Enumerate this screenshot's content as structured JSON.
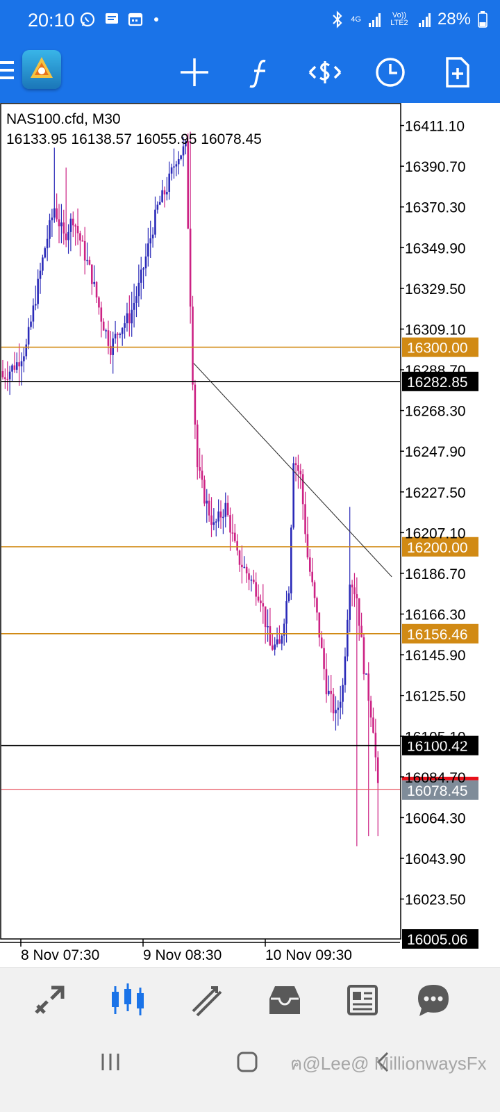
{
  "status_bar": {
    "time": "20:10",
    "network_4g": "4G",
    "network_volte": "Vo)) LTE2",
    "battery": "28%",
    "icons": [
      "whatsapp-icon",
      "message-icon",
      "calendar-icon",
      "dot-icon",
      "bluetooth-icon",
      "signal-icon",
      "signal-icon",
      "battery-icon"
    ]
  },
  "toolbar": {
    "icons": [
      "menu-icon",
      "metatrader-logo",
      "crosshair-icon",
      "indicator-icon",
      "trade-icon",
      "clock-icon",
      "new-document-icon"
    ]
  },
  "chart": {
    "symbol": "NAS100.cfd, M30",
    "ohlc": "16133.95 16138.57 16055.95 16078.45",
    "price_ticks": [
      "16411.10",
      "16390.70",
      "16370.30",
      "16349.90",
      "16329.50",
      "16309.10",
      "16288.70",
      "16268.30",
      "16247.90",
      "16227.50",
      "16207.10",
      "16186.70",
      "16166.30",
      "16145.90",
      "16125.50",
      "16105.10",
      "16084.70",
      "16064.30",
      "16043.90",
      "16023.50"
    ],
    "time_labels": [
      "8 Nov 07:30",
      "9 Nov 08:30",
      "10 Nov 09:30"
    ],
    "level_lines": [
      {
        "price": 16300.0,
        "label": "16300.00",
        "color": "#d18a14",
        "text_color": "#ffffff"
      },
      {
        "price": 16282.85,
        "label": "16282.85",
        "color": "#000000",
        "text_color": "#ffffff"
      },
      {
        "price": 16200.0,
        "label": "16200.00",
        "color": "#d18a14",
        "text_color": "#ffffff"
      },
      {
        "price": 16156.46,
        "label": "16156.46",
        "color": "#d18a14",
        "text_color": "#ffffff"
      },
      {
        "price": 16100.42,
        "label": "16100.42",
        "color": "#000000",
        "text_color": "#ffffff"
      }
    ],
    "bid_line": {
      "price": 16078.45,
      "label": "16078.45",
      "color": "#e8525f",
      "label_bg": "#7f8c99"
    },
    "ask_marker_color": "#e8101a",
    "bottom_price": {
      "price": 16005.06,
      "label": "16005.06"
    },
    "trendline": {
      "from": {
        "price": 16292,
        "bar": 82
      },
      "to": {
        "price": 16185,
        "bar": 165
      }
    },
    "bull_color": "#2a2ab8",
    "bear_color": "#cc2284",
    "visible_low": 16003.5,
    "visible_high": 16422.1,
    "bars": 170
  },
  "bottom_nav": {
    "items": [
      "quotes-icon",
      "chart-icon",
      "trade-icon",
      "history-icon",
      "news-icon",
      "chat-icon"
    ],
    "active": "chart-icon",
    "active_color": "#1a73e8"
  },
  "system_nav": {
    "items": [
      "recents-icon",
      "home-icon",
      "back-icon"
    ]
  },
  "watermark": "ฅ@Lee@ MillionwaysFx"
}
